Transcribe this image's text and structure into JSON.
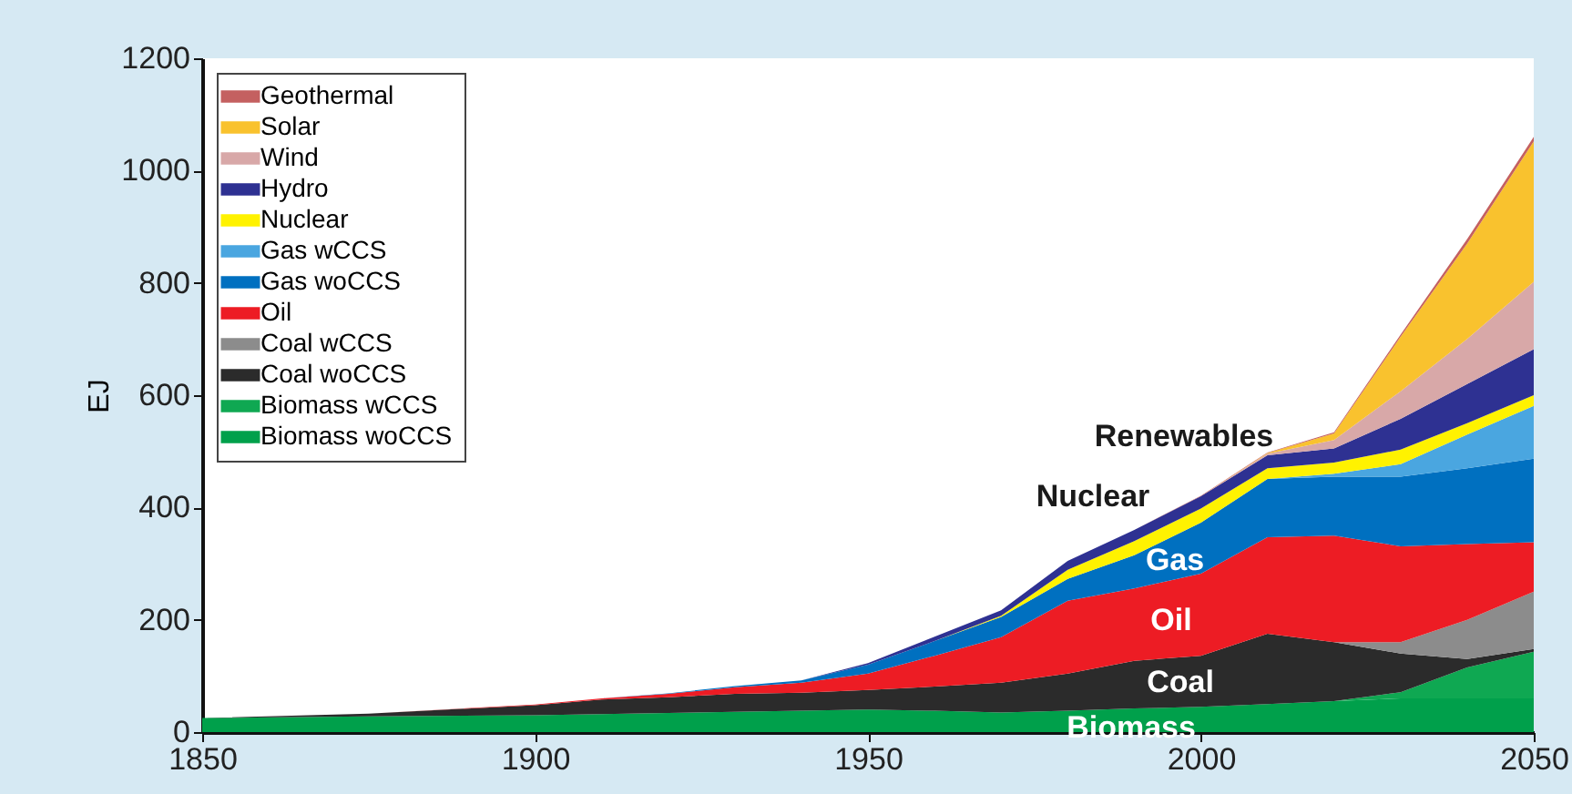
{
  "chart_data": {
    "type": "area",
    "stacked": true,
    "ylabel": "EJ",
    "legend": "top left",
    "grid": false,
    "x": [
      1850,
      1875,
      1900,
      1910,
      1920,
      1930,
      1940,
      1950,
      1960,
      1970,
      1980,
      1990,
      2000,
      2010,
      2020,
      2030,
      2040,
      2050
    ],
    "xlim": [
      1850,
      2050
    ],
    "xticks": [
      1850,
      1900,
      1950,
      2000,
      2050
    ],
    "ylim": [
      0,
      1200
    ],
    "yticks": [
      0,
      200,
      400,
      600,
      800,
      1000,
      1200
    ],
    "series": [
      {
        "name": "Biomass woCCS",
        "color": "#00a04b",
        "values": [
          25,
          28,
          30,
          32,
          34,
          36,
          38,
          40,
          38,
          35,
          38,
          42,
          45,
          50,
          55,
          60,
          60,
          60
        ]
      },
      {
        "name": "Biomass wCCS",
        "color": "#0fa852",
        "values": [
          0,
          0,
          0,
          0,
          0,
          0,
          0,
          0,
          0,
          0,
          0,
          0,
          0,
          0,
          0,
          11,
          55,
          83
        ]
      },
      {
        "name": "Coal woCCS",
        "color": "#2b2b2b",
        "values": [
          0,
          5,
          18,
          26,
          28,
          32,
          32,
          35,
          43,
          53,
          66,
          85,
          91,
          125,
          105,
          69,
          15,
          5
        ]
      },
      {
        "name": "Coal wCCS",
        "color": "#8c8c8c",
        "values": [
          0,
          0,
          0,
          0,
          0,
          0,
          0,
          0,
          0,
          0,
          0,
          0,
          0,
          0,
          0,
          20,
          70,
          102
        ]
      },
      {
        "name": "Oil",
        "color": "#ed1c24",
        "values": [
          0,
          0,
          1,
          2,
          6,
          12,
          18,
          29,
          55,
          81,
          130,
          129,
          146,
          172,
          190,
          171,
          135,
          88
        ]
      },
      {
        "name": "Gas woCCS",
        "color": "#0070c0",
        "values": [
          0,
          0,
          0,
          0,
          1,
          2,
          4,
          16,
          26,
          36,
          39,
          59,
          91,
          104,
          105,
          124,
          135,
          149
        ]
      },
      {
        "name": "Gas wCCS",
        "color": "#4aa6e0",
        "values": [
          0,
          0,
          0,
          0,
          0,
          0,
          0,
          0,
          0,
          0,
          0,
          0,
          0,
          0,
          5,
          22,
          60,
          94
        ]
      },
      {
        "name": "Nuclear",
        "color": "#fff200",
        "values": [
          0,
          0,
          0,
          0,
          0,
          0,
          0,
          0,
          0,
          2,
          16,
          25,
          25,
          19,
          20,
          26,
          20,
          19
        ]
      },
      {
        "name": "Hydro",
        "color": "#2e3192",
        "values": [
          0,
          0,
          0,
          0,
          0,
          0,
          0,
          3,
          8,
          10,
          16,
          20,
          22,
          23,
          25,
          55,
          70,
          82
        ]
      },
      {
        "name": "Wind",
        "color": "#d8a8a8",
        "values": [
          0,
          0,
          0,
          0,
          0,
          0,
          0,
          0,
          0,
          0,
          0,
          0,
          0,
          3,
          15,
          49,
          80,
          120
        ]
      },
      {
        "name": "Solar",
        "color": "#f9c22e",
        "values": [
          0,
          0,
          0,
          0,
          0,
          0,
          0,
          0,
          0,
          0,
          0,
          0,
          0,
          1,
          12,
          97,
          170,
          250
        ]
      },
      {
        "name": "Geothermal",
        "color": "#c46060",
        "values": [
          0,
          0,
          0,
          0,
          0,
          0,
          0,
          0,
          0,
          0,
          0,
          0,
          1,
          1,
          2,
          4,
          8,
          8
        ]
      }
    ],
    "annotations": [
      "Renewables",
      "Nuclear",
      "Gas",
      "Oil",
      "Coal",
      "Biomass"
    ]
  }
}
